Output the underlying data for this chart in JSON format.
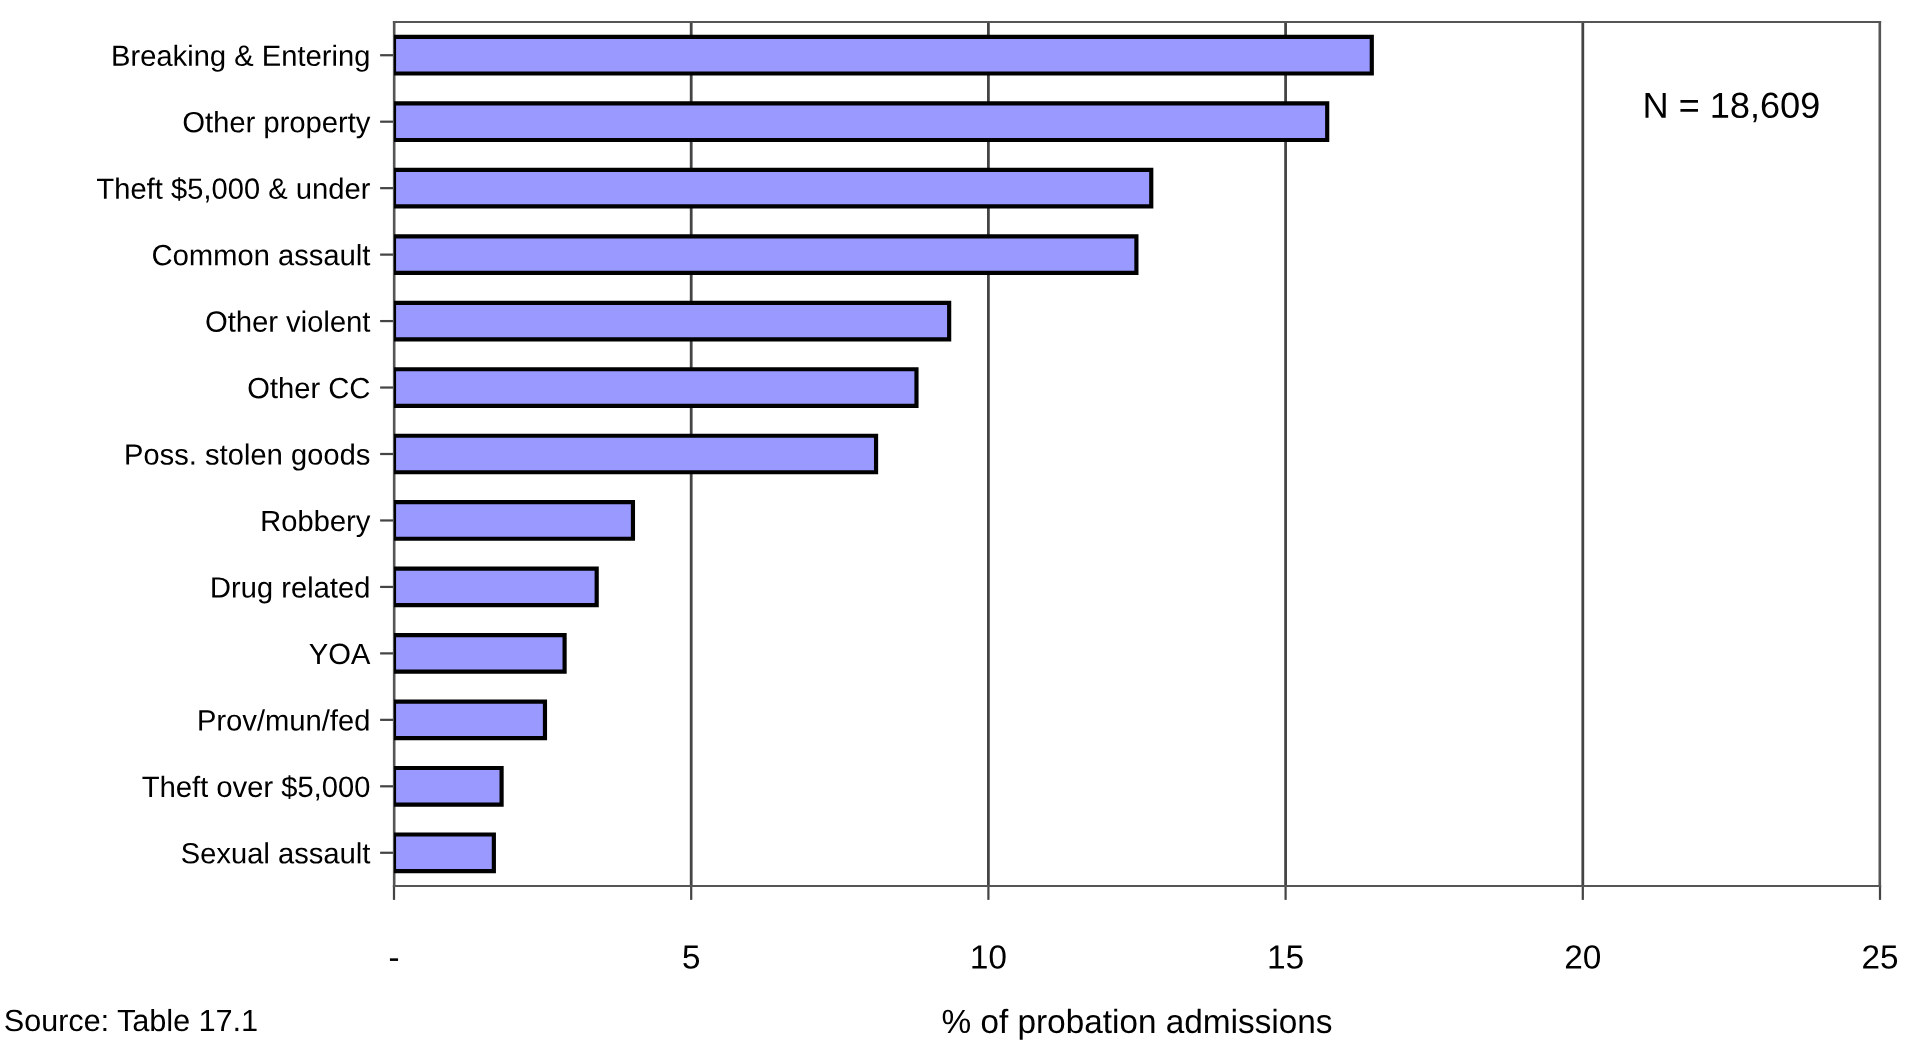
{
  "chart_data": {
    "type": "bar",
    "orientation": "horizontal",
    "xlabel": "% of probation admissions",
    "categories": [
      "Breaking & Entering",
      "Other property",
      "Theft $5,000 & under",
      "Common assault",
      "Other violent",
      "Other CC",
      "Poss. stolen goods",
      "Robbery",
      "Drug related",
      "YOA",
      "Prov/mun/fed",
      "Theft over $5,000",
      "Sexual assault"
    ],
    "values": [
      16.45,
      15.7,
      12.74,
      12.49,
      9.34,
      8.79,
      8.11,
      4.02,
      3.41,
      2.87,
      2.54,
      1.81,
      1.68
    ],
    "color": "#9999ff",
    "xlim": [
      0,
      25
    ],
    "xticks": [
      {
        "value": 0,
        "label": "-"
      },
      5,
      10,
      15,
      20,
      25
    ],
    "grid": "x",
    "annotations": [
      "N = 18,609",
      "Source: Table 17.1"
    ]
  }
}
